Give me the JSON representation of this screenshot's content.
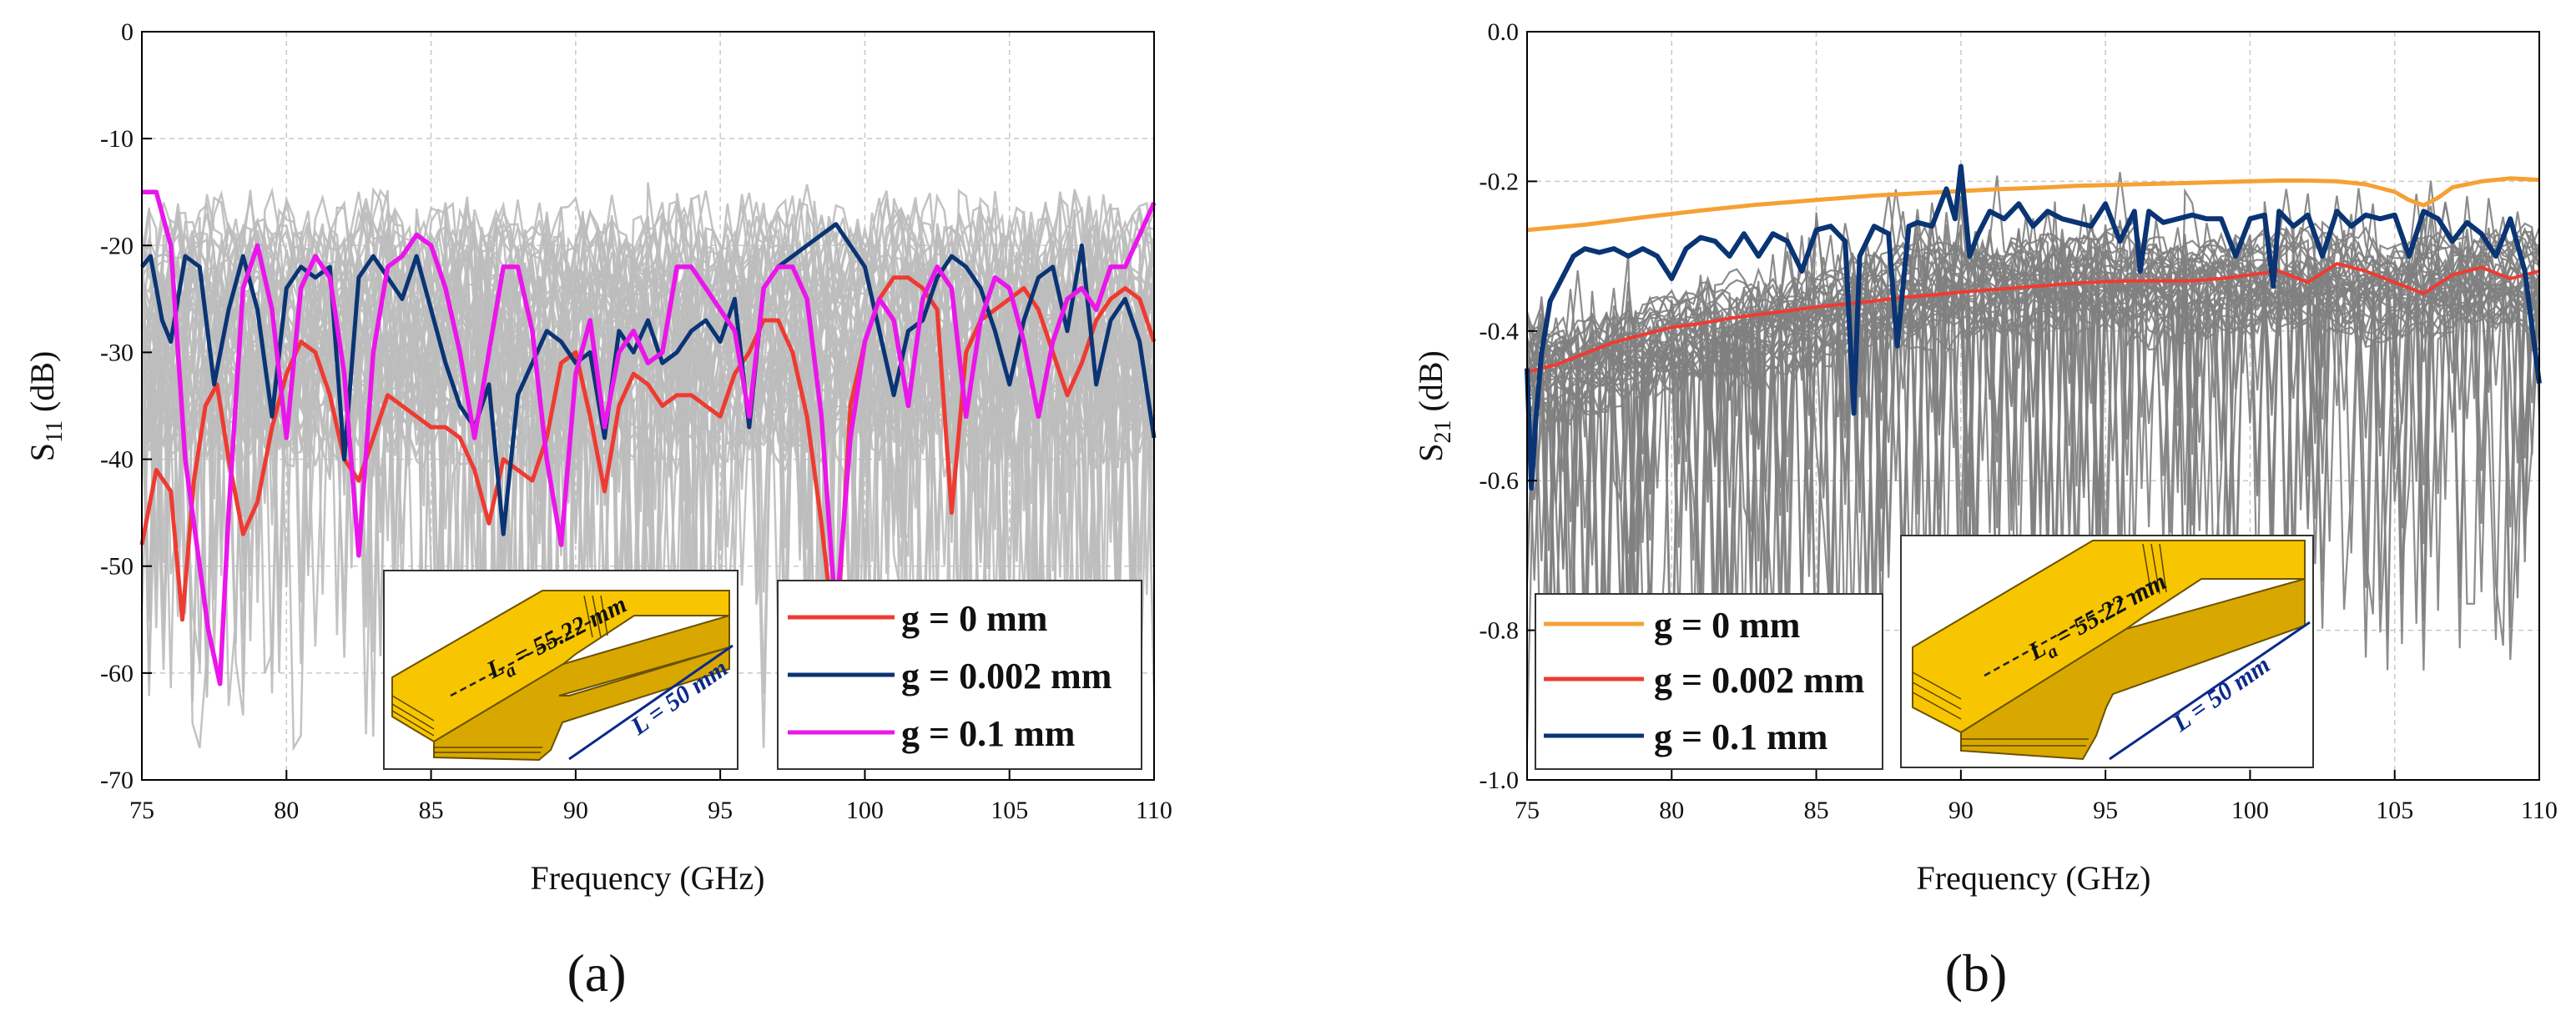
{
  "chart_data": [
    {
      "type": "line",
      "panel_label": "(a)",
      "xlabel": "Frequency (GHz)",
      "ylabel_main": "S",
      "ylabel_sub": "11",
      "ylabel_unit": " (dB)",
      "xlim": [
        75,
        110
      ],
      "ylim": [
        -70,
        0
      ],
      "xticks": [
        "75",
        "80",
        "85",
        "90",
        "95",
        "100",
        "105",
        "110"
      ],
      "yticks": [
        "0",
        "-10",
        "-20",
        "-30",
        "-40",
        "-50",
        "-60",
        "-70"
      ],
      "grid": true,
      "legend_position": "bottom-right",
      "background_family": {
        "color": "#bdbdbd",
        "count": 50,
        "description": "many gray traces"
      },
      "series": [
        {
          "name": "g = 0 mm",
          "color": "#ee3b32",
          "x": [
            75,
            75.5,
            76,
            76.4,
            76.8,
            77.2,
            77.6,
            78,
            78.5,
            79,
            79.5,
            80,
            80.5,
            81,
            81.5,
            82,
            82.5,
            83,
            83.5,
            84,
            84.5,
            85,
            85.5,
            86,
            86.5,
            87,
            87.5,
            88,
            88.5,
            89,
            89.5,
            90,
            90.5,
            91,
            91.5,
            92,
            92.5,
            93,
            93.5,
            94,
            94.5,
            95,
            95.5,
            96,
            96.5,
            97,
            97.5,
            98,
            98.5,
            99,
            99.5,
            100,
            100.5,
            101,
            101.5,
            102,
            102.5,
            103,
            103.5,
            104,
            104.5,
            105,
            105.5,
            106,
            106.5,
            107,
            107.5,
            108,
            108.5,
            109,
            109.5,
            110
          ],
          "y": [
            -48,
            -41,
            -43,
            -55,
            -42,
            -35,
            -33,
            -40,
            -47,
            -44,
            -37,
            -32,
            -29,
            -30,
            -34,
            -40,
            -42,
            -38,
            -34,
            -35,
            -36,
            -37,
            -37,
            -38,
            -41,
            -46,
            -40,
            -41,
            -42,
            -38,
            -31,
            -30,
            -36,
            -43,
            -35,
            -32,
            -33,
            -35,
            -34,
            -34,
            -35,
            -36,
            -32,
            -30,
            -27,
            -27,
            -30,
            -36,
            -46,
            -58,
            -35,
            -29,
            -25,
            -23,
            -23,
            -24,
            -26,
            -45,
            -30,
            -27,
            -26,
            -25,
            -24,
            -26,
            -30,
            -34,
            -31,
            -27,
            -25,
            -24,
            -25,
            -29
          ]
        },
        {
          "name": "g = 0.002 mm",
          "color": "#0a3474",
          "x": [
            75,
            75.3,
            75.7,
            76,
            76.5,
            77,
            77.5,
            78,
            78.5,
            79,
            79.5,
            80,
            80.5,
            81,
            81.5,
            82,
            82.5,
            83,
            83.5,
            84,
            84.5,
            85,
            85.5,
            86,
            86.5,
            87,
            87.5,
            88,
            88.5,
            89,
            89.5,
            90,
            90.5,
            91,
            91.5,
            92,
            92.5,
            93,
            93.5,
            94,
            94.5,
            95,
            95.5,
            96,
            96.5,
            97,
            97.5,
            98,
            98.5,
            99,
            99.5,
            100,
            100.5,
            101,
            101.5,
            102,
            102.5,
            103,
            103.5,
            104,
            104.5,
            105,
            105.5,
            106,
            106.5,
            107,
            107.5,
            108,
            108.5,
            109,
            109.5,
            110
          ],
          "y": [
            -22,
            -21,
            -27,
            -29,
            -21,
            -22,
            -33,
            -26,
            -21,
            -26,
            -36,
            -24,
            -22,
            -23,
            -22,
            -40,
            -23,
            -21,
            -23,
            -25,
            -21,
            -26,
            -31,
            -35,
            -37,
            -33,
            -47,
            -34,
            -31,
            -28,
            -29,
            -31,
            -30,
            -38,
            -28,
            -30,
            -27,
            -31,
            -30,
            -28,
            -27,
            -29,
            -25,
            -37,
            -24,
            -22,
            -21,
            -20,
            -19,
            -18,
            -20,
            -22,
            -28,
            -34,
            -28,
            -27,
            -23,
            -21,
            -22,
            -24,
            -28,
            -33,
            -27,
            -23,
            -22,
            -28,
            -20,
            -33,
            -27,
            -25,
            -29,
            -38
          ]
        },
        {
          "name": "g = 0.1 mm",
          "color": "#ea16ea",
          "x": [
            75,
            75.5,
            76,
            76.5,
            77,
            77.3,
            77.7,
            78,
            78.5,
            79,
            79.5,
            80,
            80.5,
            81,
            81.5,
            82,
            82.5,
            83,
            83.5,
            84,
            84.5,
            85,
            85.5,
            86,
            86.5,
            87,
            87.5,
            88,
            88.5,
            89,
            89.5,
            90,
            90.5,
            91,
            91.5,
            92,
            92.5,
            93,
            93.5,
            94,
            94.5,
            95,
            95.5,
            96,
            96.5,
            97,
            97.5,
            98,
            98.5,
            99,
            99.5,
            100,
            100.5,
            101,
            101.5,
            102,
            102.5,
            103,
            103.5,
            104,
            104.5,
            105,
            105.5,
            106,
            106.5,
            107,
            107.5,
            108,
            108.5,
            109,
            109.5,
            110
          ],
          "y": [
            -15,
            -15,
            -20,
            -40,
            -50,
            -56,
            -61,
            -45,
            -24,
            -20,
            -26,
            -38,
            -24,
            -21,
            -23,
            -32,
            -49,
            -30,
            -22,
            -21,
            -19,
            -20,
            -24,
            -30,
            -38,
            -30,
            -22,
            -22,
            -28,
            -40,
            -48,
            -32,
            -27,
            -37,
            -30,
            -28,
            -31,
            -30,
            -22,
            -22,
            -24,
            -26,
            -28,
            -36,
            -24,
            -22,
            -22,
            -25,
            -36,
            -55,
            -38,
            -29,
            -25,
            -27,
            -35,
            -25,
            -22,
            -24,
            -36,
            -27,
            -23,
            -24,
            -29,
            -36,
            -29,
            -25,
            -24,
            -26,
            -22,
            -22,
            -19,
            -16
          ]
        }
      ],
      "inset": {
        "la_prefix": "L",
        "la_sub": "a",
        "la_value": " = 55.22 mm",
        "l_label": "L = 50 mm"
      }
    },
    {
      "type": "line",
      "panel_label": "(b)",
      "xlabel": "Frequency (GHz)",
      "ylabel_main": "S",
      "ylabel_sub": "21",
      "ylabel_unit": " (dB)",
      "xlim": [
        75,
        110
      ],
      "ylim": [
        -1.0,
        0.0
      ],
      "xticks": [
        "75",
        "80",
        "85",
        "90",
        "95",
        "100",
        "105",
        "110"
      ],
      "yticks": [
        "0.0",
        "-0.2",
        "-0.4",
        "-0.6",
        "-0.8",
        "-1.0"
      ],
      "grid": true,
      "legend_position": "bottom-left",
      "background_family": {
        "color": "#7f7f7f",
        "count": 40,
        "description": "many gray traces"
      },
      "series": [
        {
          "name": "g = 0 mm",
          "color": "#f5a133",
          "x": [
            75,
            77,
            79,
            81,
            83,
            85,
            87,
            89,
            91,
            93,
            94,
            95,
            96,
            97,
            98,
            99,
            100,
            101,
            102,
            103,
            104,
            105,
            105.5,
            106,
            106.5,
            107,
            108,
            109,
            110
          ],
          "y": [
            -0.265,
            -0.258,
            -0.248,
            -0.239,
            -0.231,
            -0.225,
            -0.219,
            -0.215,
            -0.211,
            -0.208,
            -0.206,
            -0.205,
            -0.204,
            -0.203,
            -0.202,
            -0.201,
            -0.2,
            -0.199,
            -0.199,
            -0.2,
            -0.204,
            -0.214,
            -0.225,
            -0.232,
            -0.222,
            -0.208,
            -0.2,
            -0.196,
            -0.198
          ]
        },
        {
          "name": "g = 0.002 mm",
          "color": "#ee3b32",
          "x": [
            75,
            76,
            77,
            78,
            79,
            80,
            81,
            82,
            83,
            84,
            85,
            86,
            87,
            88,
            89,
            90,
            91,
            92,
            93,
            94,
            95,
            96,
            97,
            98,
            99,
            100,
            101,
            102,
            103,
            104,
            105,
            106,
            107,
            108,
            109,
            110
          ],
          "y": [
            -0.455,
            -0.445,
            -0.43,
            -0.415,
            -0.405,
            -0.395,
            -0.39,
            -0.383,
            -0.378,
            -0.373,
            -0.368,
            -0.364,
            -0.36,
            -0.355,
            -0.352,
            -0.348,
            -0.345,
            -0.342,
            -0.339,
            -0.336,
            -0.334,
            -0.333,
            -0.333,
            -0.333,
            -0.33,
            -0.325,
            -0.32,
            -0.335,
            -0.31,
            -0.32,
            -0.335,
            -0.35,
            -0.325,
            -0.315,
            -0.33,
            -0.32
          ]
        },
        {
          "name": "g = 0.1 mm",
          "color": "#0a3474",
          "x": [
            75,
            75.15,
            75.3,
            75.5,
            75.8,
            76.2,
            76.6,
            77,
            77.5,
            78,
            78.5,
            79,
            79.5,
            80,
            80.5,
            81,
            81.5,
            82,
            82.5,
            83,
            83.5,
            84,
            84.5,
            85,
            85.5,
            86,
            86.3,
            86.5,
            87,
            87.5,
            87.8,
            88.2,
            88.5,
            89,
            89.5,
            89.8,
            90,
            90.3,
            90.6,
            91,
            91.5,
            92,
            92.5,
            93,
            93.5,
            94,
            94.5,
            95,
            95.5,
            96,
            96.2,
            96.5,
            97,
            97.5,
            98,
            98.5,
            99,
            99.5,
            100,
            100.5,
            100.8,
            101,
            101.5,
            102,
            102.5,
            103,
            103.5,
            104,
            104.5,
            105,
            105.5,
            106,
            106.5,
            107,
            107.5,
            108,
            108.5,
            109,
            109.5,
            110
          ],
          "y": [
            -0.45,
            -0.61,
            -0.52,
            -0.43,
            -0.36,
            -0.33,
            -0.3,
            -0.29,
            -0.295,
            -0.29,
            -0.3,
            -0.29,
            -0.3,
            -0.33,
            -0.29,
            -0.275,
            -0.28,
            -0.3,
            -0.27,
            -0.3,
            -0.27,
            -0.28,
            -0.32,
            -0.265,
            -0.26,
            -0.28,
            -0.51,
            -0.3,
            -0.26,
            -0.27,
            -0.42,
            -0.26,
            -0.255,
            -0.26,
            -0.21,
            -0.25,
            -0.18,
            -0.3,
            -0.27,
            -0.24,
            -0.25,
            -0.23,
            -0.26,
            -0.24,
            -0.25,
            -0.255,
            -0.26,
            -0.23,
            -0.28,
            -0.24,
            -0.32,
            -0.24,
            -0.255,
            -0.25,
            -0.245,
            -0.25,
            -0.25,
            -0.3,
            -0.25,
            -0.245,
            -0.34,
            -0.24,
            -0.26,
            -0.245,
            -0.3,
            -0.24,
            -0.26,
            -0.245,
            -0.25,
            -0.245,
            -0.3,
            -0.24,
            -0.25,
            -0.28,
            -0.255,
            -0.27,
            -0.3,
            -0.25,
            -0.32,
            -0.47
          ]
        }
      ],
      "inset": {
        "la_prefix": "L",
        "la_sub": "a",
        "la_value": " = 55.22 mm",
        "l_label": "L = 50 mm"
      }
    }
  ]
}
